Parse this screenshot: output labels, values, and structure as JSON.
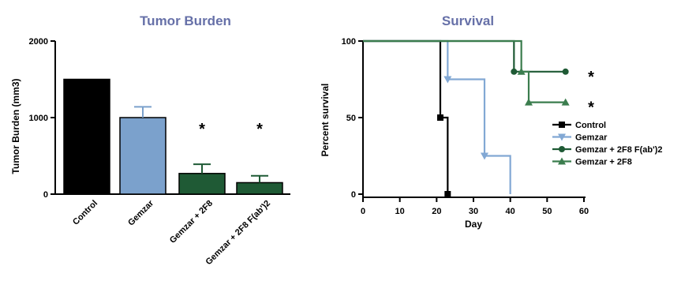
{
  "colors": {
    "title": "#6670a8",
    "control": "#000000",
    "gemzar": "#82a8d4",
    "gemzar_fill": "#7ba1cc",
    "green_dark": "#1f5a35",
    "green_mid": "#3b7d4e"
  },
  "chart_data": [
    {
      "type": "bar",
      "title": "Tumor Burden",
      "ylabel": "Tumor Burden (mm3)",
      "xlabel": "",
      "ylim": [
        0,
        2000
      ],
      "yticks": [
        "0",
        "1000",
        "2000"
      ],
      "categories": [
        "Control",
        "Gemzar",
        "Gemzar + 2F8",
        "Gemzar + 2F8 F(ab')2"
      ],
      "values": [
        1500,
        1000,
        270,
        150
      ],
      "errors": [
        0,
        140,
        120,
        90
      ],
      "significance": [
        "",
        "",
        "*",
        "*"
      ]
    },
    {
      "type": "line",
      "title": "Survival",
      "xlabel": "Day",
      "ylabel": "Percent survival",
      "xlim": [
        0,
        60
      ],
      "ylim": [
        0,
        100
      ],
      "xticks": [
        "0",
        "10",
        "20",
        "30",
        "40",
        "50",
        "60"
      ],
      "yticks": [
        "0",
        "50",
        "100"
      ],
      "series": [
        {
          "name": "Control",
          "marker": "square",
          "color": "#000000",
          "points": [
            [
              0,
              100
            ],
            [
              21,
              100
            ],
            [
              21,
              50
            ],
            [
              23,
              50
            ],
            [
              23,
              0
            ]
          ],
          "markers": [
            [
              21,
              50
            ],
            [
              23,
              0
            ]
          ]
        },
        {
          "name": "Gemzar",
          "marker": "triangle-down",
          "color": "#82a8d4",
          "points": [
            [
              0,
              100
            ],
            [
              23,
              100
            ],
            [
              23,
              75
            ],
            [
              33,
              75
            ],
            [
              33,
              25
            ],
            [
              40,
              25
            ],
            [
              40,
              0
            ]
          ],
          "markers": [
            [
              23,
              75
            ],
            [
              33,
              25
            ]
          ]
        },
        {
          "name": "Gemzar + 2F8 F(ab')2",
          "marker": "circle",
          "color": "#1f5a35",
          "points": [
            [
              0,
              100
            ],
            [
              41,
              100
            ],
            [
              41,
              80
            ],
            [
              55,
              80
            ]
          ],
          "markers": [
            [
              41,
              80
            ],
            [
              55,
              80
            ]
          ]
        },
        {
          "name": "Gemzar + 2F8",
          "marker": "triangle-up",
          "color": "#3b7d4e",
          "points": [
            [
              0,
              100
            ],
            [
              43,
              100
            ],
            [
              43,
              80
            ],
            [
              45,
              80
            ],
            [
              45,
              60
            ],
            [
              55,
              60
            ]
          ],
          "markers": [
            [
              43,
              80
            ],
            [
              45,
              60
            ],
            [
              55,
              60
            ]
          ]
        }
      ],
      "significance": [
        {
          "series": "Gemzar + 2F8 F(ab')2",
          "label": "*"
        },
        {
          "series": "Gemzar + 2F8",
          "label": "*"
        }
      ]
    }
  ]
}
